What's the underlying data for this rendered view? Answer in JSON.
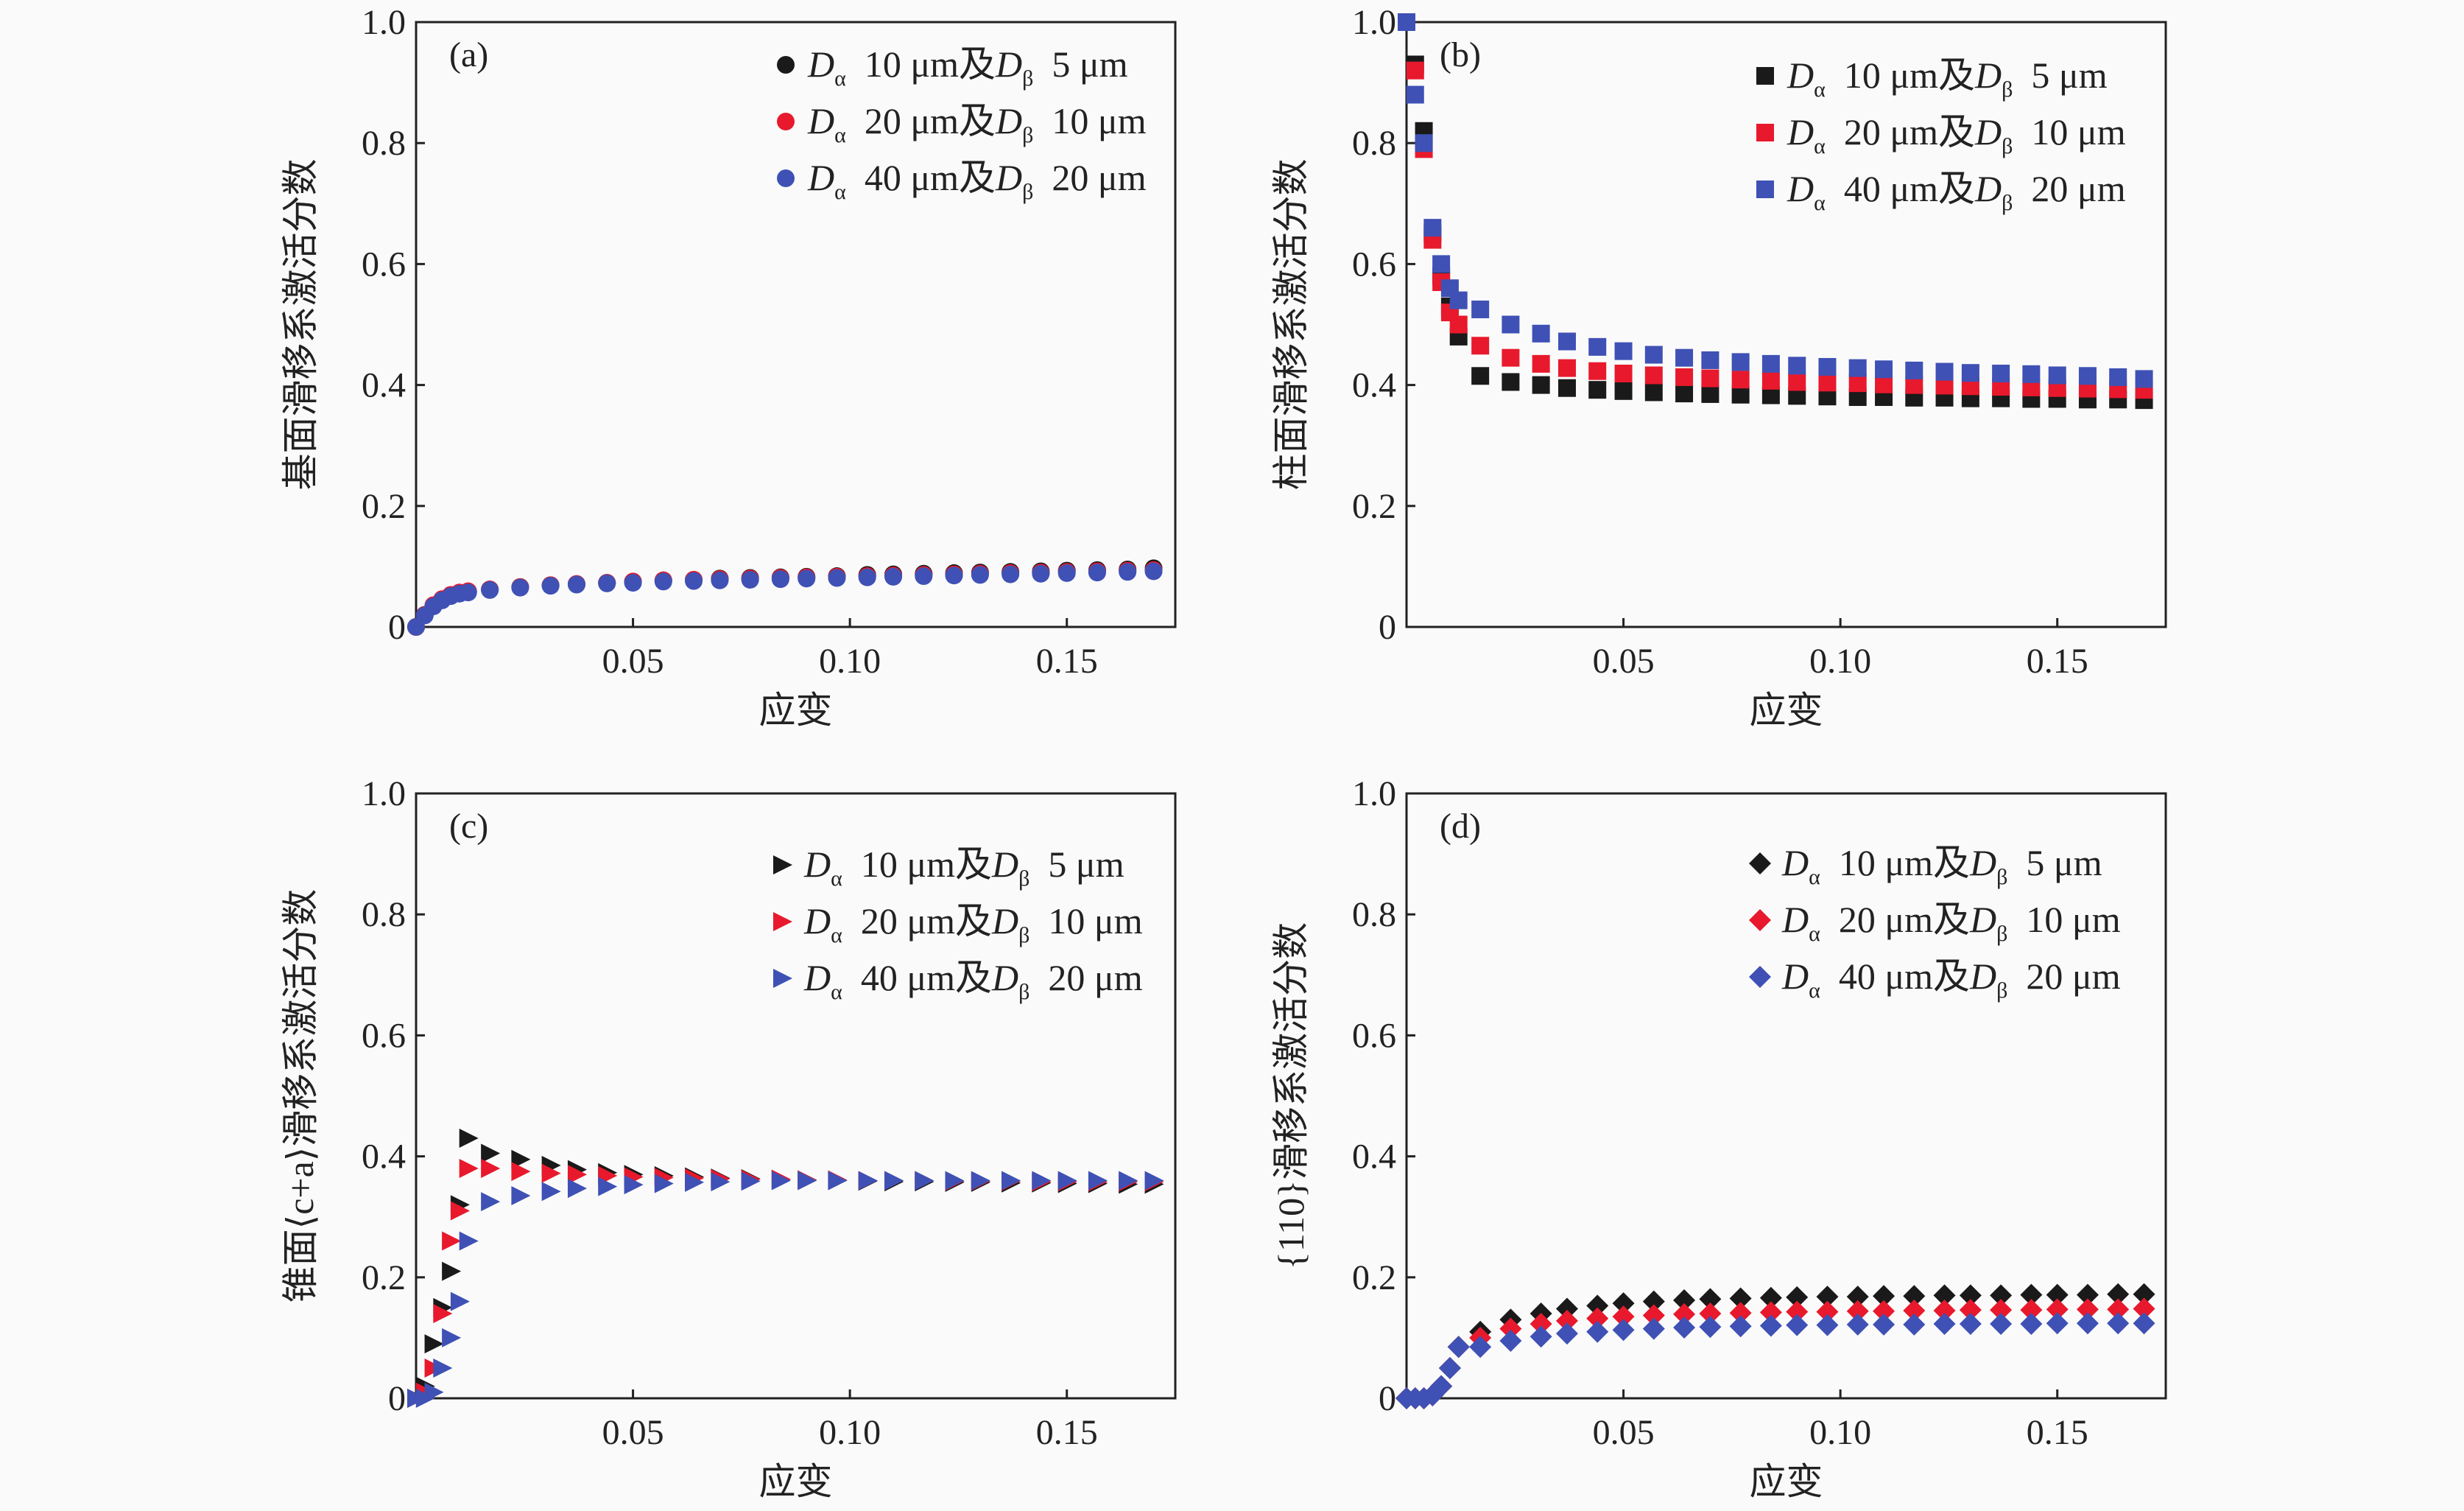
{
  "chart_data": [
    {
      "type": "scatter",
      "panel_label": "(a)",
      "xlabel": "应变",
      "ylabel": "基面滑移系激活分数",
      "xlim": [
        0,
        0.175
      ],
      "ylim": [
        0,
        1.0
      ],
      "xticks": [
        "0.05",
        "0.10",
        "0.15"
      ],
      "yticks": [
        "0",
        "0.2",
        "0.4",
        "0.6",
        "0.8",
        "1.0"
      ],
      "marker": "circle",
      "legend_position": "top-right",
      "x": [
        0,
        0.002,
        0.004,
        0.006,
        0.008,
        0.01,
        0.012,
        0.017,
        0.024,
        0.031,
        0.037,
        0.044,
        0.05,
        0.057,
        0.064,
        0.07,
        0.077,
        0.084,
        0.09,
        0.097,
        0.104,
        0.11,
        0.117,
        0.124,
        0.13,
        0.137,
        0.144,
        0.15,
        0.157,
        0.164,
        0.17
      ],
      "series": [
        {
          "name": "Dα 10 μm及Dβ 5 μm",
          "color": "#1a1a1a",
          "values": [
            0,
            0.02,
            0.035,
            0.045,
            0.052,
            0.056,
            0.058,
            0.062,
            0.066,
            0.069,
            0.071,
            0.073,
            0.075,
            0.077,
            0.078,
            0.08,
            0.081,
            0.082,
            0.083,
            0.084,
            0.086,
            0.087,
            0.088,
            0.089,
            0.09,
            0.091,
            0.092,
            0.093,
            0.094,
            0.095,
            0.097
          ]
        },
        {
          "name": "Dα 20 μm及Dβ 10 μm",
          "color": "#e8192c",
          "values": [
            0,
            0.02,
            0.036,
            0.046,
            0.053,
            0.057,
            0.059,
            0.062,
            0.066,
            0.069,
            0.071,
            0.073,
            0.075,
            0.077,
            0.078,
            0.079,
            0.08,
            0.081,
            0.082,
            0.083,
            0.084,
            0.085,
            0.086,
            0.087,
            0.088,
            0.089,
            0.09,
            0.091,
            0.092,
            0.093,
            0.094
          ]
        },
        {
          "name": "Dα 40 μm及Dβ 20 μm",
          "color": "#3f51b5",
          "values": [
            0,
            0.019,
            0.034,
            0.044,
            0.051,
            0.055,
            0.057,
            0.061,
            0.065,
            0.068,
            0.07,
            0.072,
            0.073,
            0.075,
            0.076,
            0.077,
            0.078,
            0.079,
            0.08,
            0.081,
            0.082,
            0.083,
            0.084,
            0.085,
            0.086,
            0.087,
            0.088,
            0.089,
            0.09,
            0.091,
            0.092
          ]
        }
      ]
    },
    {
      "type": "scatter",
      "panel_label": "(b)",
      "xlabel": "应变",
      "ylabel": "柱面滑移系激活分数",
      "xlim": [
        0,
        0.175
      ],
      "ylim": [
        0,
        1.0
      ],
      "xticks": [
        "0.05",
        "0.10",
        "0.15"
      ],
      "yticks": [
        "0",
        "0.2",
        "0.4",
        "0.6",
        "0.8",
        "1.0"
      ],
      "marker": "square",
      "legend_position": "top-right",
      "x": [
        0,
        0.002,
        0.004,
        0.006,
        0.008,
        0.01,
        0.012,
        0.017,
        0.024,
        0.031,
        0.037,
        0.044,
        0.05,
        0.057,
        0.064,
        0.07,
        0.077,
        0.084,
        0.09,
        0.097,
        0.104,
        0.11,
        0.117,
        0.124,
        0.13,
        0.137,
        0.144,
        0.15,
        0.157,
        0.164,
        0.17
      ],
      "series": [
        {
          "name": "Dα 10 μm及Dβ 5 μm",
          "color": "#1a1a1a",
          "values": [
            1.0,
            0.93,
            0.82,
            0.65,
            0.58,
            0.53,
            0.48,
            0.415,
            0.405,
            0.4,
            0.395,
            0.392,
            0.39,
            0.388,
            0.386,
            0.385,
            0.384,
            0.383,
            0.382,
            0.381,
            0.38,
            0.38,
            0.379,
            0.379,
            0.378,
            0.378,
            0.377,
            0.377,
            0.376,
            0.376,
            0.375
          ]
        },
        {
          "name": "Dα 20 μm及Dβ 10 μm",
          "color": "#e8192c",
          "values": [
            1.0,
            0.92,
            0.79,
            0.64,
            0.57,
            0.52,
            0.5,
            0.465,
            0.445,
            0.435,
            0.428,
            0.423,
            0.419,
            0.416,
            0.413,
            0.411,
            0.409,
            0.407,
            0.405,
            0.404,
            0.403,
            0.401,
            0.4,
            0.399,
            0.398,
            0.397,
            0.396,
            0.395,
            0.394,
            0.393,
            0.392
          ]
        },
        {
          "name": "Dα 40 μm及Dβ 20 μm",
          "color": "#3f51b5",
          "values": [
            1.0,
            0.88,
            0.8,
            0.66,
            0.6,
            0.56,
            0.54,
            0.525,
            0.5,
            0.485,
            0.472,
            0.463,
            0.456,
            0.45,
            0.445,
            0.441,
            0.438,
            0.435,
            0.432,
            0.43,
            0.428,
            0.426,
            0.424,
            0.422,
            0.42,
            0.419,
            0.418,
            0.416,
            0.415,
            0.413,
            0.41
          ]
        }
      ]
    },
    {
      "type": "scatter",
      "panel_label": "(c)",
      "xlabel": "应变",
      "ylabel": "锥面⟨c+a⟩滑移系激活分数",
      "xlim": [
        0,
        0.175
      ],
      "ylim": [
        0,
        1.0
      ],
      "xticks": [
        "0.05",
        "0.10",
        "0.15"
      ],
      "yticks": [
        "0",
        "0.2",
        "0.4",
        "0.6",
        "0.8",
        "1.0"
      ],
      "marker": "triangle-right",
      "legend_position": "top-right",
      "x": [
        0,
        0.002,
        0.004,
        0.006,
        0.008,
        0.01,
        0.012,
        0.017,
        0.024,
        0.031,
        0.037,
        0.044,
        0.05,
        0.057,
        0.064,
        0.07,
        0.077,
        0.084,
        0.09,
        0.097,
        0.104,
        0.11,
        0.117,
        0.124,
        0.13,
        0.137,
        0.144,
        0.15,
        0.157,
        0.164,
        0.17
      ],
      "series": [
        {
          "name": "Dα 10 μm及Dβ 5 μm",
          "color": "#1a1a1a",
          "values": [
            0,
            0.02,
            0.09,
            0.15,
            0.21,
            0.32,
            0.43,
            0.405,
            0.395,
            0.385,
            0.378,
            0.373,
            0.37,
            0.368,
            0.366,
            0.364,
            0.363,
            0.362,
            0.361,
            0.36,
            0.359,
            0.358,
            0.358,
            0.357,
            0.357,
            0.356,
            0.356,
            0.355,
            0.355,
            0.354,
            0.354
          ]
        },
        {
          "name": "Dα 20 μm及Dβ 10 μm",
          "color": "#e8192c",
          "values": [
            0,
            0.01,
            0.05,
            0.14,
            0.26,
            0.31,
            0.38,
            0.38,
            0.375,
            0.372,
            0.37,
            0.368,
            0.366,
            0.365,
            0.364,
            0.363,
            0.362,
            0.362,
            0.361,
            0.361,
            0.36,
            0.36,
            0.36,
            0.359,
            0.359,
            0.359,
            0.358,
            0.358,
            0.358,
            0.358,
            0.358
          ]
        },
        {
          "name": "Dα 40 μm及Dβ 20 μm",
          "color": "#3f51b5",
          "values": [
            0,
            0,
            0.01,
            0.05,
            0.1,
            0.16,
            0.26,
            0.325,
            0.335,
            0.342,
            0.347,
            0.35,
            0.353,
            0.355,
            0.357,
            0.358,
            0.359,
            0.36,
            0.36,
            0.36,
            0.36,
            0.36,
            0.36,
            0.36,
            0.36,
            0.36,
            0.36,
            0.36,
            0.36,
            0.36,
            0.36
          ]
        }
      ]
    },
    {
      "type": "scatter",
      "panel_label": "(d)",
      "xlabel": "应变",
      "ylabel": "{110}滑移系激活分数",
      "xlim": [
        0,
        0.175
      ],
      "ylim": [
        0,
        1.0
      ],
      "xticks": [
        "0.05",
        "0.10",
        "0.15"
      ],
      "yticks": [
        "0",
        "0.2",
        "0.4",
        "0.6",
        "0.8",
        "1.0"
      ],
      "marker": "diamond",
      "legend_position": "top-right",
      "x": [
        0,
        0.002,
        0.004,
        0.006,
        0.008,
        0.01,
        0.012,
        0.017,
        0.024,
        0.031,
        0.037,
        0.044,
        0.05,
        0.057,
        0.064,
        0.07,
        0.077,
        0.084,
        0.09,
        0.097,
        0.104,
        0.11,
        0.117,
        0.124,
        0.13,
        0.137,
        0.144,
        0.15,
        0.157,
        0.164,
        0.17
      ],
      "series": [
        {
          "name": "Dα 10 μm及Dβ 5 μm",
          "color": "#1a1a1a",
          "values": [
            0,
            0,
            0,
            0.005,
            0.02,
            0.05,
            0.085,
            0.11,
            0.13,
            0.14,
            0.148,
            0.153,
            0.157,
            0.16,
            0.162,
            0.164,
            0.165,
            0.166,
            0.167,
            0.168,
            0.168,
            0.169,
            0.169,
            0.17,
            0.17,
            0.17,
            0.171,
            0.171,
            0.171,
            0.172,
            0.172
          ]
        },
        {
          "name": "Dα 20 μm及Dβ 10 μm",
          "color": "#e8192c",
          "values": [
            0,
            0,
            0,
            0.005,
            0.02,
            0.05,
            0.085,
            0.1,
            0.115,
            0.123,
            0.128,
            0.132,
            0.135,
            0.137,
            0.139,
            0.14,
            0.141,
            0.142,
            0.143,
            0.143,
            0.144,
            0.144,
            0.145,
            0.145,
            0.146,
            0.146,
            0.146,
            0.147,
            0.147,
            0.147,
            0.148
          ]
        },
        {
          "name": "Dα 40 μm及Dβ 20 μm",
          "color": "#3f51b5",
          "values": [
            0,
            0,
            0,
            0.005,
            0.02,
            0.05,
            0.085,
            0.085,
            0.095,
            0.102,
            0.107,
            0.11,
            0.113,
            0.115,
            0.117,
            0.118,
            0.119,
            0.12,
            0.121,
            0.121,
            0.122,
            0.122,
            0.122,
            0.123,
            0.123,
            0.123,
            0.123,
            0.124,
            0.124,
            0.124,
            0.124
          ]
        }
      ]
    }
  ]
}
